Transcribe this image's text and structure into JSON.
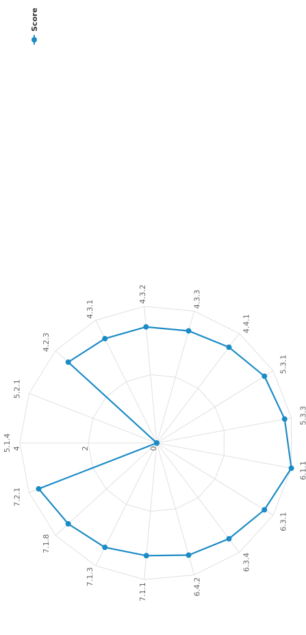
{
  "chart_data": {
    "type": "radar",
    "legend": "top-right",
    "categories": [
      "5.1.4",
      "5.2.1",
      "4.2.3",
      "4.3.1",
      "4.3.2",
      "4.3.3",
      "4.4.1",
      "5.3.1",
      "5.3.3",
      "6.1.1",
      "6.3.1",
      "6.3.4",
      "6.4.2",
      "7.1.1",
      "7.1.3",
      "7.1.8",
      "7.2.1"
    ],
    "series": [
      {
        "name": "Score",
        "color": "#1b8bc5",
        "values": [
          0,
          0,
          3.5,
          3.4,
          3.4,
          3.4,
          3.5,
          3.7,
          3.8,
          4.0,
          3.7,
          3.5,
          3.4,
          3.3,
          3.4,
          3.5,
          3.7
        ]
      }
    ],
    "ylim": [
      0,
      4
    ],
    "yticks": [
      0,
      2,
      4
    ],
    "grid": true
  }
}
